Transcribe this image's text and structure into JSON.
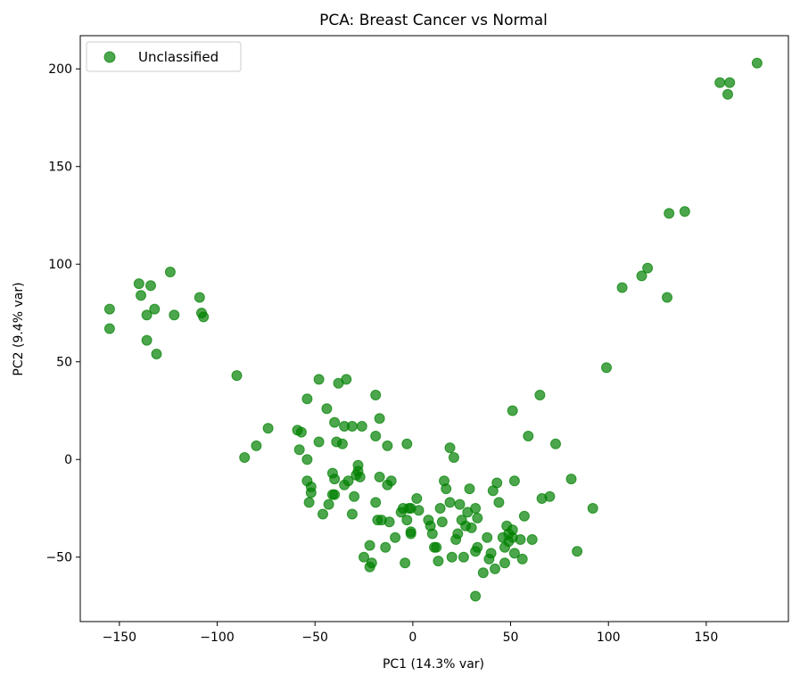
{
  "chart_data": {
    "type": "scatter",
    "title": "PCA: Breast Cancer vs Normal",
    "xlabel": "PC1 (14.3% var)",
    "ylabel": "PC2 (9.4% var)",
    "xlim": [
      -170,
      192
    ],
    "ylim": [
      -83,
      217
    ],
    "xticks": [
      -150,
      -100,
      -50,
      0,
      50,
      100,
      150
    ],
    "yticks": [
      -50,
      0,
      50,
      100,
      150,
      200
    ],
    "xtick_labels": [
      "−150",
      "−100",
      "−50",
      "0",
      "50",
      "100",
      "150"
    ],
    "ytick_labels": [
      "−50",
      "0",
      "50",
      "100",
      "150",
      "200"
    ],
    "grid": false,
    "legend_position": "top-left",
    "series": [
      {
        "name": "Unclassified",
        "color": "#008000",
        "points": [
          [
            176,
            203
          ],
          [
            157,
            193
          ],
          [
            162,
            193
          ],
          [
            161,
            187
          ],
          [
            139,
            127
          ],
          [
            131,
            126
          ],
          [
            130,
            83
          ],
          [
            120,
            98
          ],
          [
            117,
            94
          ],
          [
            107,
            88
          ],
          [
            99,
            47
          ],
          [
            -155,
            77
          ],
          [
            -155,
            67
          ],
          [
            -140,
            90
          ],
          [
            -134,
            89
          ],
          [
            -139,
            84
          ],
          [
            -124,
            96
          ],
          [
            -132,
            77
          ],
          [
            -136,
            74
          ],
          [
            -122,
            74
          ],
          [
            -109,
            83
          ],
          [
            -108,
            75
          ],
          [
            -107,
            73
          ],
          [
            -136,
            61
          ],
          [
            -131,
            54
          ],
          [
            -90,
            43
          ],
          [
            -74,
            16
          ],
          [
            -80,
            7
          ],
          [
            -86,
            1
          ],
          [
            -59,
            15
          ],
          [
            -57,
            14
          ],
          [
            -58,
            5
          ],
          [
            -54,
            31
          ],
          [
            -48,
            41
          ],
          [
            -44,
            26
          ],
          [
            -40,
            19
          ],
          [
            -38,
            39
          ],
          [
            -34,
            41
          ],
          [
            -39,
            9
          ],
          [
            -36,
            8
          ],
          [
            -48,
            9
          ],
          [
            -54,
            0
          ],
          [
            -35,
            17
          ],
          [
            -31,
            17
          ],
          [
            -26,
            17
          ],
          [
            -19,
            33
          ],
          [
            -19,
            12
          ],
          [
            -17,
            21
          ],
          [
            -13,
            7
          ],
          [
            -3,
            8
          ],
          [
            19,
            6
          ],
          [
            21,
            1
          ],
          [
            51,
            25
          ],
          [
            65,
            33
          ],
          [
            59,
            12
          ],
          [
            73,
            8
          ],
          [
            -54,
            -11
          ],
          [
            -53,
            -22
          ],
          [
            -52,
            -17
          ],
          [
            -52,
            -14
          ],
          [
            -46,
            -28
          ],
          [
            -43,
            -23
          ],
          [
            -41,
            -7
          ],
          [
            -40,
            -10
          ],
          [
            -41,
            -18
          ],
          [
            -40,
            -18
          ],
          [
            -35,
            -13
          ],
          [
            -33,
            -11
          ],
          [
            -29,
            -8
          ],
          [
            -28,
            -3
          ],
          [
            -28,
            -6
          ],
          [
            -27,
            -9
          ],
          [
            -31,
            -28
          ],
          [
            -30,
            -19
          ],
          [
            -25,
            -50
          ],
          [
            -22,
            -44
          ],
          [
            -22,
            -55
          ],
          [
            -21,
            -53
          ],
          [
            -19,
            -22
          ],
          [
            -18,
            -31
          ],
          [
            -17,
            -9
          ],
          [
            -16,
            -31
          ],
          [
            -14,
            -45
          ],
          [
            -13,
            -13
          ],
          [
            -12,
            -32
          ],
          [
            -11,
            -11
          ],
          [
            -9,
            -40
          ],
          [
            -6,
            -27
          ],
          [
            -5,
            -25
          ],
          [
            -4,
            -53
          ],
          [
            -3,
            -31
          ],
          [
            -2,
            -25
          ],
          [
            -1,
            -25
          ],
          [
            -1,
            -37
          ],
          [
            -1,
            -38
          ],
          [
            2,
            -20
          ],
          [
            3,
            -26
          ],
          [
            8,
            -31
          ],
          [
            9,
            -34
          ],
          [
            10,
            -38
          ],
          [
            11,
            -45
          ],
          [
            12,
            -45
          ],
          [
            13,
            -52
          ],
          [
            14,
            -25
          ],
          [
            15,
            -32
          ],
          [
            16,
            -11
          ],
          [
            17,
            -15
          ],
          [
            19,
            -22
          ],
          [
            20,
            -50
          ],
          [
            22,
            -41
          ],
          [
            23,
            -38
          ],
          [
            24,
            -23
          ],
          [
            25,
            -31
          ],
          [
            26,
            -50
          ],
          [
            27,
            -34
          ],
          [
            28,
            -27
          ],
          [
            29,
            -15
          ],
          [
            30,
            -35
          ],
          [
            32,
            -25
          ],
          [
            32,
            -47
          ],
          [
            33,
            -45
          ],
          [
            33,
            -30
          ],
          [
            32,
            -70
          ],
          [
            36,
            -58
          ],
          [
            38,
            -40
          ],
          [
            39,
            -51
          ],
          [
            40,
            -48
          ],
          [
            41,
            -16
          ],
          [
            42,
            -56
          ],
          [
            43,
            -12
          ],
          [
            44,
            -22
          ],
          [
            46,
            -40
          ],
          [
            47,
            -53
          ],
          [
            47,
            -45
          ],
          [
            48,
            -34
          ],
          [
            49,
            -38
          ],
          [
            49,
            -42
          ],
          [
            51,
            -36
          ],
          [
            51,
            -40
          ],
          [
            52,
            -48
          ],
          [
            52,
            -11
          ],
          [
            55,
            -41
          ],
          [
            56,
            -51
          ],
          [
            57,
            -29
          ],
          [
            61,
            -41
          ],
          [
            66,
            -20
          ],
          [
            70,
            -19
          ],
          [
            81,
            -10
          ],
          [
            84,
            -47
          ],
          [
            92,
            -25
          ]
        ]
      }
    ]
  }
}
